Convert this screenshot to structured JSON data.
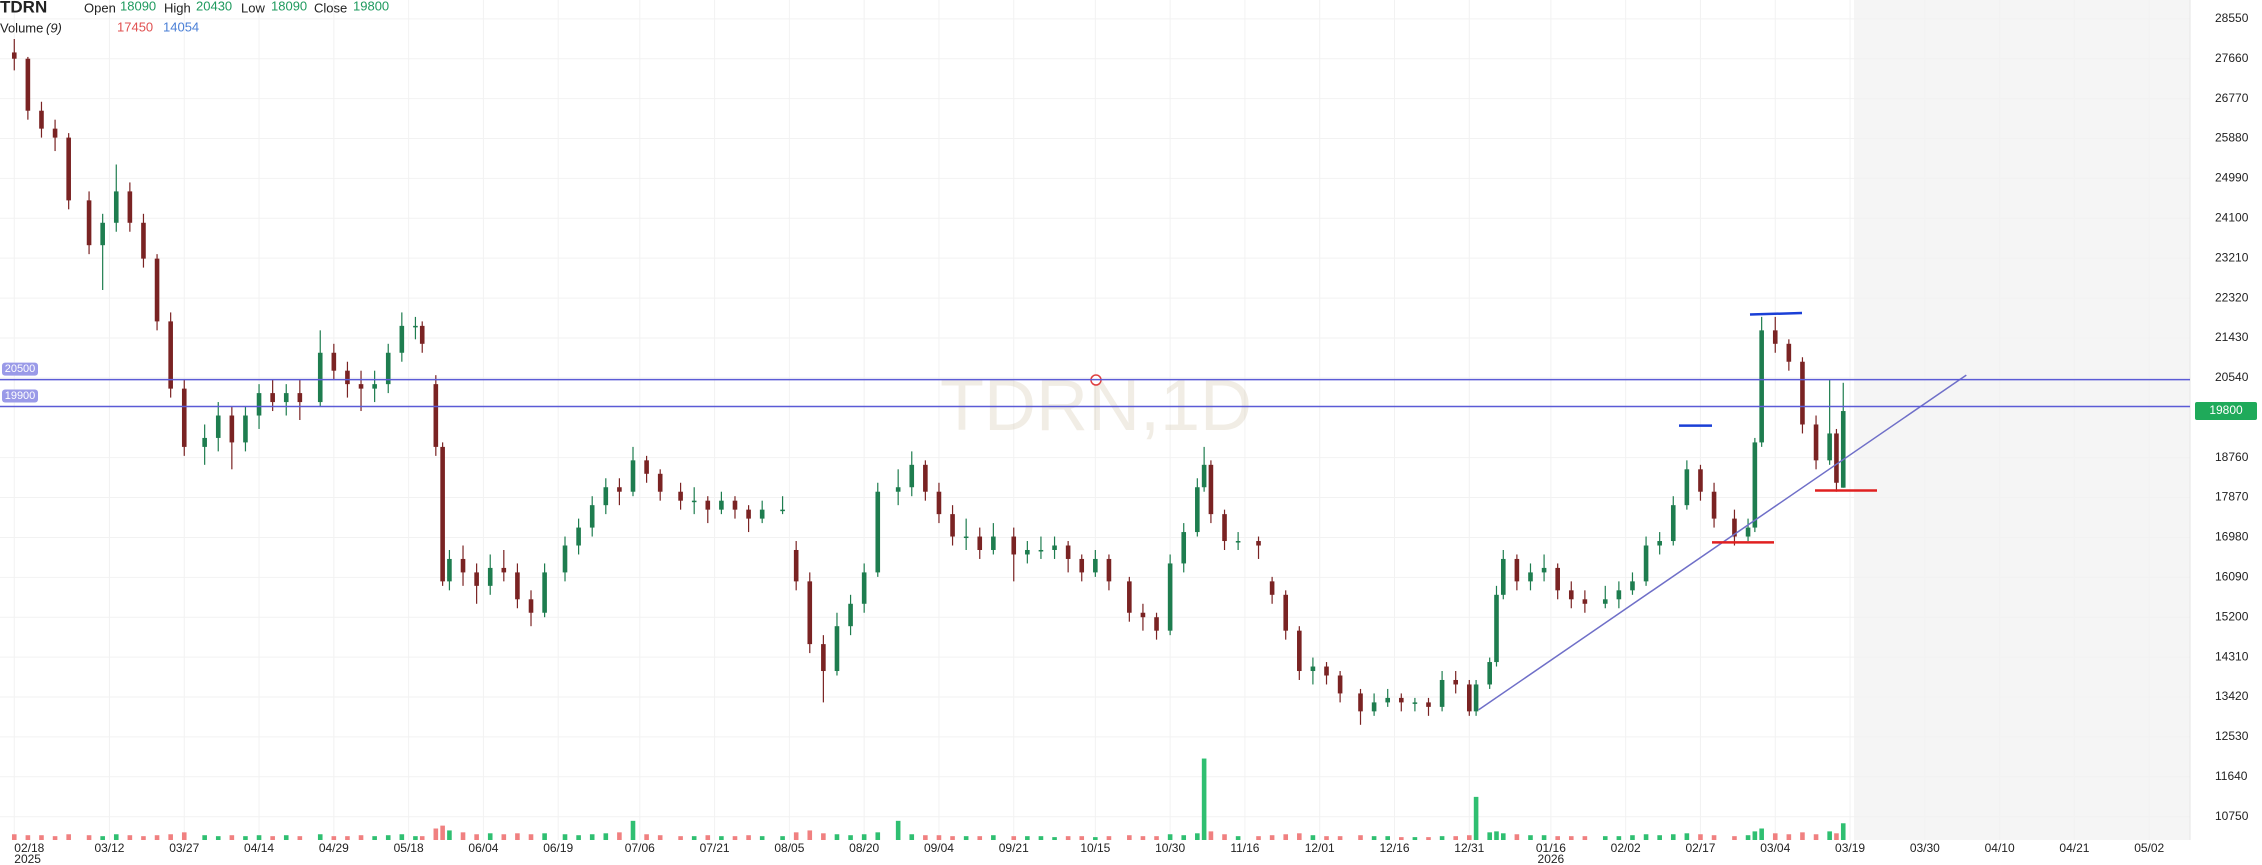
{
  "chart_data": {
    "type": "candlestick",
    "title": "TDRN",
    "watermark": "TDRN,1D",
    "ohlc_labels": [
      "Open",
      "High",
      "Low",
      "Close"
    ],
    "ohlc_values": [
      18090,
      20430,
      18090,
      19800
    ],
    "volume_label": "Volume",
    "volume_period": "(9)",
    "volume_values": [
      17450,
      14054
    ],
    "up_color": "#1e7d4f",
    "down_color": "#7a2323",
    "volume_up_color": "#2fbf71",
    "volume_down_color": "#f08080",
    "hline_color": "#5b5bd6",
    "hlines": [
      20500,
      19900
    ],
    "ylim": [
      10230,
      28970
    ],
    "volume_lim": [
      0,
      120000
    ],
    "xlim": [
      -2.1,
      320
    ],
    "grid": true,
    "yticks": [
      10750,
      11640,
      12530,
      13420,
      14310,
      15200,
      16090,
      16980,
      17870,
      18760,
      20540,
      21430,
      22320,
      23210,
      24100,
      24990,
      25880,
      26770,
      27660,
      28550
    ],
    "xticks": [
      {
        "value": 0,
        "label": "02/18"
      },
      {
        "value": 14,
        "label": "03/12"
      },
      {
        "value": 25,
        "label": "03/27"
      },
      {
        "value": 36,
        "label": "04/14"
      },
      {
        "value": 47,
        "label": "04/29"
      },
      {
        "value": 58,
        "label": "05/18"
      },
      {
        "value": 69,
        "label": "06/04"
      },
      {
        "value": 80,
        "label": "06/19"
      },
      {
        "value": 92,
        "label": "07/06"
      },
      {
        "value": 103,
        "label": "07/21"
      },
      {
        "value": 114,
        "label": "08/05"
      },
      {
        "value": 125,
        "label": "08/20"
      },
      {
        "value": 136,
        "label": "09/04"
      },
      {
        "value": 147,
        "label": "09/21"
      },
      {
        "value": 159,
        "label": "10/15"
      },
      {
        "value": 170,
        "label": "10/30"
      },
      {
        "value": 181,
        "label": "11/16"
      },
      {
        "value": 192,
        "label": "12/01"
      },
      {
        "value": 203,
        "label": "12/16"
      },
      {
        "value": 214,
        "label": "12/31"
      },
      {
        "value": 226,
        "label": "01/16"
      },
      {
        "value": 237,
        "label": "02/02"
      },
      {
        "value": 248,
        "label": "02/17"
      },
      {
        "value": 259,
        "label": "03/04"
      },
      {
        "value": 270,
        "label": "03/19"
      },
      {
        "value": 281,
        "label": "03/30"
      },
      {
        "value": 292,
        "label": "04/10"
      },
      {
        "value": 303,
        "label": "04/21"
      },
      {
        "value": 314,
        "label": "05/02"
      }
    ],
    "year_labels": [
      {
        "value": 0,
        "label": "2025"
      },
      {
        "value": 226,
        "label": "2026"
      }
    ],
    "x": [
      0,
      2,
      4,
      6,
      8,
      11,
      13,
      15,
      17,
      19,
      21,
      23,
      25,
      28,
      30,
      32,
      34,
      36,
      38,
      40,
      42,
      45,
      47,
      49,
      51,
      53,
      55,
      57,
      59,
      60,
      62,
      63,
      64,
      66,
      68,
      70,
      72,
      74,
      76,
      78,
      81,
      83,
      85,
      87,
      89,
      91,
      93,
      95,
      98,
      100,
      102,
      104,
      106,
      108,
      110,
      113,
      115,
      117,
      119,
      121,
      123,
      125,
      127,
      130,
      132,
      134,
      136,
      138,
      140,
      142,
      144,
      147,
      149,
      151,
      153,
      155,
      157,
      159,
      161,
      164,
      166,
      168,
      170,
      172,
      174,
      175,
      176,
      178,
      180,
      183,
      185,
      187,
      189,
      191,
      193,
      195,
      198,
      200,
      202,
      204,
      206,
      208,
      210,
      212,
      214,
      215,
      217,
      218,
      219,
      221,
      223,
      225,
      227,
      229,
      231,
      234,
      236,
      238,
      240,
      242,
      244,
      246,
      248,
      250,
      253,
      255,
      256,
      257,
      259,
      261,
      263,
      265,
      267,
      268,
      269
    ],
    "open": [
      27800,
      27660,
      26500,
      26100,
      25900,
      24500,
      23500,
      24000,
      24700,
      24000,
      23200,
      21800,
      20300,
      19000,
      19200,
      19700,
      19100,
      19700,
      20200,
      20000,
      20200,
      20000,
      21100,
      20700,
      20400,
      20300,
      20400,
      21100,
      21700,
      21700,
      20400,
      19000,
      16000,
      16500,
      16200,
      15900,
      16300,
      16200,
      15600,
      15300,
      16200,
      16800,
      17200,
      17700,
      18100,
      18000,
      18700,
      18400,
      18000,
      17800,
      17800,
      17600,
      17800,
      17600,
      17400,
      17600,
      16700,
      16000,
      14600,
      14000,
      15000,
      15500,
      16200,
      18000,
      18100,
      18600,
      18000,
      17500,
      17000,
      17000,
      16700,
      17000,
      16600,
      16700,
      16700,
      16800,
      16500,
      16200,
      16500,
      16000,
      15300,
      15200,
      14900,
      16400,
      17100,
      18100,
      18600,
      17500,
      16900,
      16900,
      16000,
      15700,
      14900,
      14000,
      14100,
      13900,
      13500,
      13100,
      13300,
      13400,
      13300,
      13300,
      13200,
      13800,
      13700,
      13100,
      13700,
      14200,
      15700,
      16500,
      16000,
      16200,
      16300,
      15800,
      15600,
      15500,
      15600,
      15800,
      16000,
      16800,
      16900,
      17700,
      18500,
      18000,
      17400,
      17000,
      17200,
      19100,
      21600,
      21300,
      20900,
      19500,
      18700,
      19300,
      18090
    ],
    "high": [
      28100,
      27700,
      26700,
      26300,
      26000,
      24700,
      24200,
      25300,
      24900,
      24200,
      23300,
      22000,
      20500,
      19500,
      20000,
      19900,
      19900,
      20400,
      20500,
      20400,
      20500,
      21600,
      21300,
      20900,
      20700,
      20700,
      21300,
      22000,
      21900,
      21800,
      20600,
      19100,
      16700,
      16800,
      16400,
      16600,
      16700,
      16400,
      15800,
      16400,
      17000,
      17400,
      17900,
      18300,
      18300,
      19000,
      18800,
      18500,
      18200,
      18100,
      17900,
      18000,
      17900,
      17700,
      17800,
      17900,
      16900,
      16200,
      14800,
      15300,
      15700,
      16400,
      18200,
      18500,
      18900,
      18700,
      18200,
      17700,
      17400,
      17200,
      17300,
      17200,
      16900,
      17000,
      17000,
      16900,
      16600,
      16700,
      16600,
      16100,
      15500,
      15300,
      16600,
      17300,
      18300,
      19000,
      18700,
      17600,
      17100,
      17000,
      16100,
      15800,
      15000,
      14300,
      14200,
      14000,
      13600,
      13500,
      13600,
      13500,
      13400,
      13400,
      14000,
      14000,
      13800,
      13800,
      14300,
      15900,
      16700,
      16600,
      16400,
      16600,
      16400,
      16000,
      15800,
      15900,
      16000,
      16200,
      17000,
      17100,
      17900,
      18700,
      18600,
      18200,
      17600,
      17400,
      19200,
      21900,
      21900,
      21400,
      21000,
      19700,
      20500,
      19400,
      20430
    ],
    "low": [
      27400,
      26300,
      25900,
      25600,
      24300,
      23300,
      22500,
      23800,
      23800,
      23000,
      21600,
      20100,
      18800,
      18600,
      18900,
      18500,
      18900,
      19400,
      19800,
      19700,
      19600,
      19900,
      20500,
      20100,
      19800,
      20000,
      20200,
      20900,
      21400,
      21100,
      18800,
      15900,
      15800,
      15900,
      15500,
      15700,
      16000,
      15400,
      15000,
      15200,
      16000,
      16600,
      17000,
      17500,
      17700,
      17900,
      18200,
      17800,
      17600,
      17500,
      17300,
      17500,
      17400,
      17100,
      17300,
      17500,
      15800,
      14400,
      13300,
      13900,
      14800,
      15300,
      16100,
      17700,
      17900,
      17800,
      17300,
      16800,
      16700,
      16500,
      16600,
      16000,
      16400,
      16500,
      16500,
      16200,
      16000,
      16100,
      15800,
      15100,
      14900,
      14700,
      14800,
      16200,
      17000,
      18000,
      17300,
      16700,
      16700,
      16500,
      15500,
      14700,
      13800,
      13700,
      13700,
      13300,
      12800,
      13000,
      13200,
      13100,
      13100,
      13000,
      13100,
      13500,
      13000,
      13000,
      13600,
      14100,
      15600,
      15800,
      15800,
      16000,
      15600,
      15400,
      15300,
      15400,
      15400,
      15700,
      15900,
      16600,
      16800,
      17600,
      17800,
      17200,
      16800,
      16900,
      17100,
      19000,
      21100,
      20700,
      19300,
      18500,
      18600,
      18000,
      18090
    ],
    "close": [
      27660,
      26500,
      26100,
      25900,
      24500,
      23500,
      24000,
      24700,
      24000,
      23200,
      21800,
      20300,
      19000,
      19200,
      19700,
      19100,
      19700,
      20200,
      20000,
      20200,
      20000,
      21100,
      20700,
      20400,
      20300,
      20400,
      21100,
      21700,
      21700,
      21300,
      19000,
      16000,
      16500,
      16200,
      15900,
      16300,
      16200,
      15600,
      15300,
      16200,
      16800,
      17200,
      17700,
      18100,
      18000,
      18700,
      18400,
      18000,
      17800,
      17800,
      17600,
      17800,
      17600,
      17400,
      17600,
      17600,
      16000,
      14600,
      14000,
      15000,
      15500,
      16200,
      18000,
      18100,
      18600,
      18000,
      17500,
      17000,
      17000,
      16700,
      17000,
      16600,
      16700,
      16700,
      16800,
      16500,
      16200,
      16500,
      16000,
      15300,
      15200,
      14900,
      16400,
      17100,
      18100,
      18600,
      17500,
      16900,
      16900,
      16800,
      15700,
      14900,
      14000,
      14100,
      13900,
      13500,
      13100,
      13300,
      13400,
      13300,
      13300,
      13200,
      13800,
      13700,
      13100,
      13700,
      14200,
      15700,
      16500,
      16000,
      16200,
      16300,
      15800,
      15600,
      15500,
      15600,
      15800,
      16000,
      16800,
      16900,
      17700,
      18500,
      18000,
      17400,
      17000,
      17200,
      19100,
      21600,
      21300,
      20900,
      19500,
      18700,
      19300,
      18200,
      19800
    ],
    "volume": [
      6000,
      5000,
      5000,
      4000,
      6000,
      5000,
      4000,
      6000,
      5000,
      4000,
      5000,
      6000,
      8000,
      5000,
      4000,
      5000,
      4000,
      5000,
      4000,
      5000,
      4000,
      6000,
      4000,
      4000,
      5000,
      4000,
      5000,
      6000,
      4000,
      4000,
      12000,
      15000,
      10000,
      8000,
      6000,
      7000,
      6000,
      7000,
      6000,
      7000,
      6000,
      5000,
      6000,
      7000,
      8000,
      20000,
      6000,
      5000,
      4000,
      4000,
      5000,
      4000,
      4000,
      5000,
      4000,
      4000,
      8000,
      10000,
      7000,
      6000,
      5000,
      6000,
      8000,
      20000,
      6000,
      5000,
      5000,
      4000,
      4000,
      4000,
      5000,
      4000,
      4000,
      4000,
      3000,
      4000,
      4000,
      3000,
      4000,
      5000,
      4000,
      4000,
      6000,
      5000,
      7000,
      85000,
      9000,
      6000,
      4000,
      4000,
      5000,
      6000,
      7000,
      5000,
      4000,
      4000,
      5000,
      4000,
      4000,
      3000,
      3000,
      3000,
      4000,
      4000,
      5000,
      45000,
      8000,
      9000,
      7000,
      6000,
      5000,
      5000,
      4000,
      4000,
      4000,
      4000,
      4000,
      5000,
      6000,
      5000,
      6000,
      7000,
      6000,
      5000,
      4000,
      5000,
      9000,
      12000,
      7000,
      6000,
      8000,
      6000,
      9000,
      7000,
      17450
    ]
  }
}
